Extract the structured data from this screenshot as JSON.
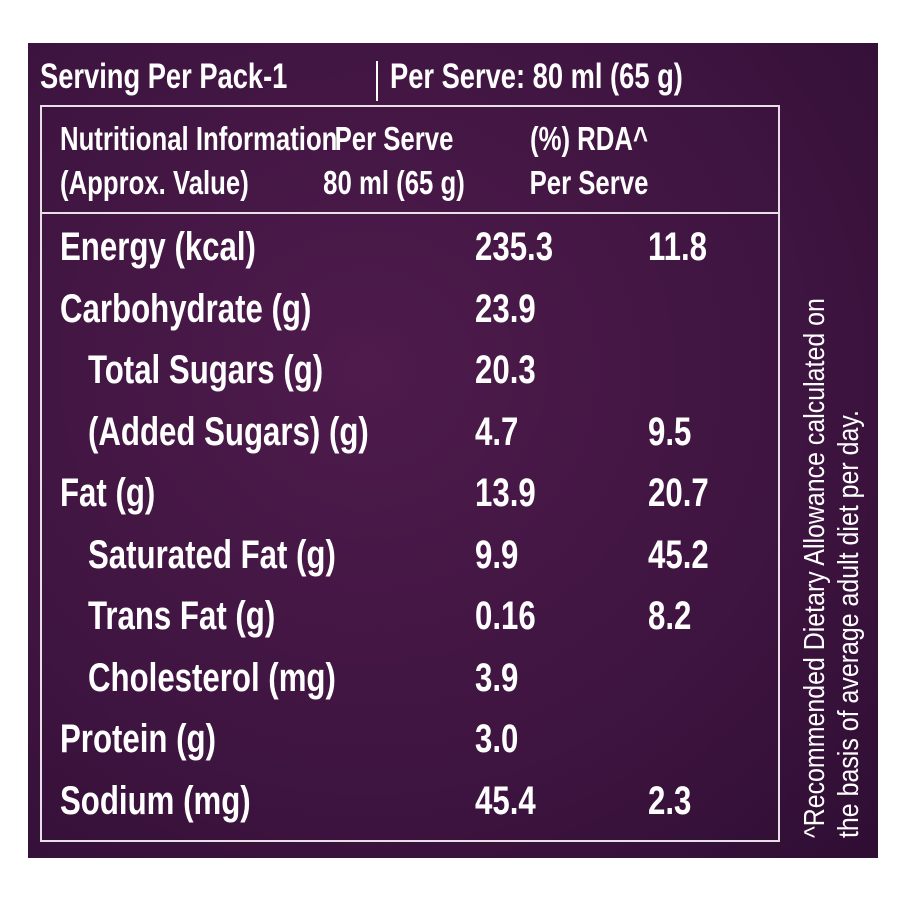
{
  "header": {
    "title": "Serving Per Pack-1",
    "serving": "Per Serve: 80 ml (65 g)"
  },
  "table": {
    "columns": [
      [
        "Nutritional Information",
        "(Approx. Value)"
      ],
      [
        "Per Serve",
        "80 ml (65 g)"
      ],
      [
        "(%) RDA^",
        "Per Serve"
      ]
    ],
    "rows": [
      {
        "name": "Energy (kcal)",
        "per_serve": "235.3",
        "rda": "11.8"
      },
      {
        "name": "Carbohydrate (g)",
        "per_serve": "23.9",
        "sub": [
          {
            "name": "Total Sugars (g)",
            "per_serve": "20.3"
          },
          {
            "name": "(Added Sugars) (g)",
            "per_serve": "4.7",
            "rda": "9.5"
          }
        ]
      },
      {
        "name": "Fat (g)",
        "per_serve": "13.9",
        "rda": "20.7",
        "sub": [
          {
            "name": "Saturated Fat (g)",
            "per_serve": "9.9",
            "rda": "45.2"
          },
          {
            "name": "Trans Fat (g)",
            "per_serve": "0.16",
            "rda": "8.2"
          },
          {
            "name": "Cholesterol (mg)",
            "per_serve": "3.9"
          }
        ]
      },
      {
        "name": "Protein (g)",
        "per_serve": "3.0"
      },
      {
        "name": "Sodium (mg)",
        "per_serve": "45.4",
        "rda": "2.3"
      }
    ]
  },
  "footnote": [
    "^Recommended Dietary Allowance calculated on",
    "the basis of average adult diet per day."
  ]
}
